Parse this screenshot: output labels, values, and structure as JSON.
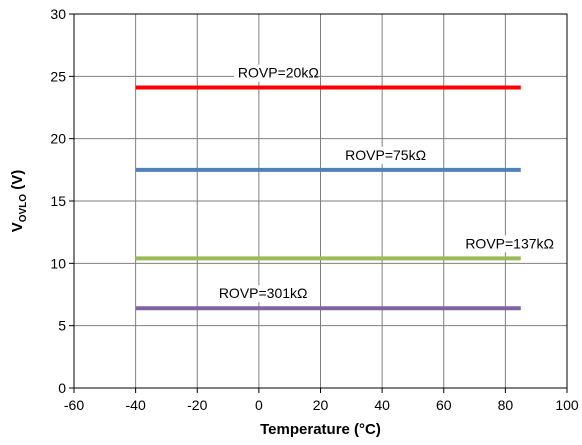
{
  "chart_data": {
    "type": "line",
    "xlabel": "Temperature (°C)",
    "ylabel": {
      "main": "V",
      "subscript": "OVLO",
      "unit": " (V)"
    },
    "xlim": [
      -60,
      100
    ],
    "ylim": [
      0,
      30
    ],
    "xticks": [
      -60,
      -40,
      -20,
      0,
      20,
      40,
      60,
      80,
      100
    ],
    "yticks": [
      0,
      5,
      10,
      15,
      20,
      25,
      30
    ],
    "grid": true,
    "legend": "none",
    "series": [
      {
        "name": "ROVP=20kΩ",
        "color": "#ff0000",
        "x": [
          -40,
          85
        ],
        "y": [
          24.1,
          24.1
        ],
        "label_x": -6.8
      },
      {
        "name": "ROVP=75kΩ",
        "color": "#4f81bd",
        "x": [
          -40,
          85
        ],
        "y": [
          17.5,
          17.5
        ],
        "label_x": 28
      },
      {
        "name": "ROVP=137kΩ",
        "color": "#9bbb59",
        "x": [
          -40,
          85
        ],
        "y": [
          10.4,
          10.4
        ],
        "label_x": 67
      },
      {
        "name": "ROVP=301kΩ",
        "color": "#8064a2",
        "x": [
          -40,
          85
        ],
        "y": [
          6.4,
          6.4
        ],
        "label_x": -13
      }
    ]
  }
}
